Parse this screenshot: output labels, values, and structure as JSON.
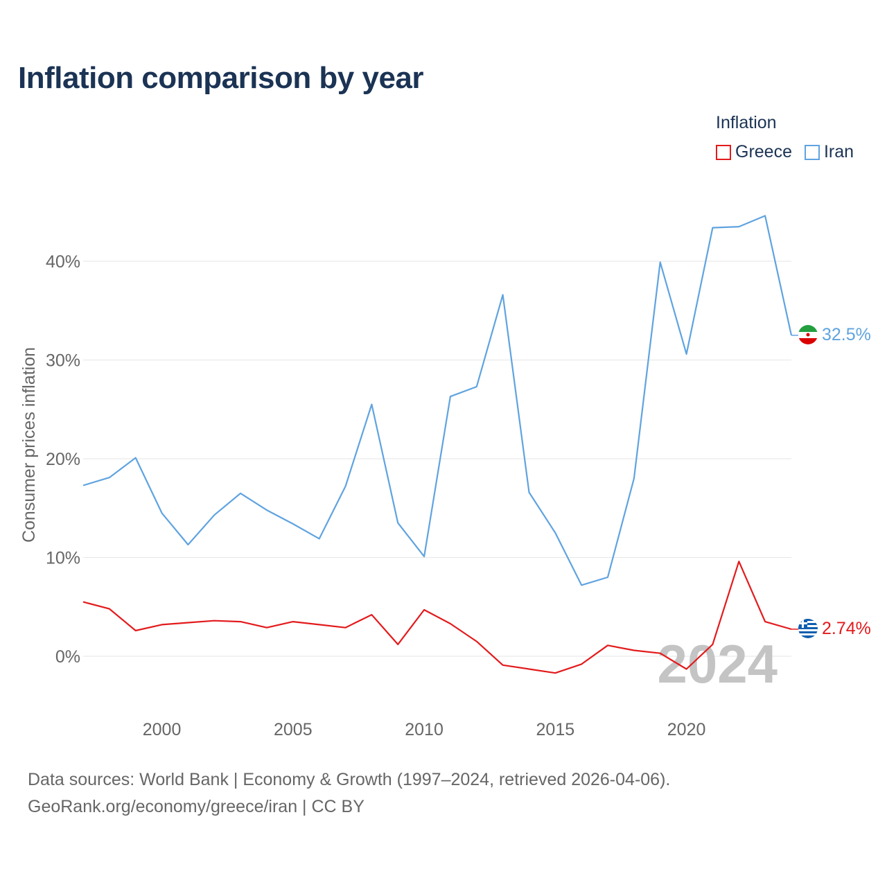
{
  "title": "Inflation comparison by year",
  "legend": {
    "title": "Inflation",
    "items": [
      {
        "label": "Greece",
        "color": "#e31a1c"
      },
      {
        "label": "Iran",
        "color": "#5fa3e0"
      }
    ]
  },
  "source": {
    "line1": "Data sources: World Bank | Economy & Growth (1997–2024, retrieved 2026-04-06).",
    "line2": "GeoRank.org/economy/greece/iran | CC BY"
  },
  "chart_data": {
    "type": "line",
    "title": "Inflation comparison by year",
    "xlabel": "",
    "ylabel": "Consumer prices inflation",
    "xlim": [
      1997,
      2024
    ],
    "ylim": [
      -5,
      48
    ],
    "x_ticks": [
      2000,
      2005,
      2010,
      2015,
      2020
    ],
    "y_ticks": [
      0,
      10,
      20,
      30,
      40
    ],
    "y_tick_labels": [
      "0%",
      "10%",
      "20%",
      "30%",
      "40%"
    ],
    "grid": true,
    "watermark_year": "2024",
    "x": [
      1997,
      1998,
      1999,
      2000,
      2001,
      2002,
      2003,
      2004,
      2005,
      2006,
      2007,
      2008,
      2009,
      2010,
      2011,
      2012,
      2013,
      2014,
      2015,
      2016,
      2017,
      2018,
      2019,
      2020,
      2021,
      2022,
      2023,
      2024
    ],
    "series": [
      {
        "name": "Greece",
        "color": "#e31a1c",
        "end_label": "2.74%",
        "flag": "greece-flag-icon",
        "values": [
          5.5,
          4.8,
          2.6,
          3.2,
          3.4,
          3.6,
          3.5,
          2.9,
          3.5,
          3.2,
          2.9,
          4.2,
          1.2,
          4.7,
          3.3,
          1.5,
          -0.9,
          -1.3,
          -1.7,
          -0.8,
          1.1,
          0.6,
          0.3,
          -1.3,
          1.2,
          9.6,
          3.5,
          2.74
        ]
      },
      {
        "name": "Iran",
        "color": "#5fa3e0",
        "end_label": "32.5%",
        "flag": "iran-flag-icon",
        "values": [
          17.3,
          18.1,
          20.1,
          14.5,
          11.3,
          14.3,
          16.5,
          14.8,
          13.4,
          11.9,
          17.2,
          25.5,
          13.5,
          10.1,
          26.3,
          27.3,
          36.6,
          16.6,
          12.5,
          7.2,
          8.0,
          18.0,
          39.9,
          30.6,
          43.4,
          43.5,
          44.6,
          32.5
        ]
      }
    ]
  }
}
